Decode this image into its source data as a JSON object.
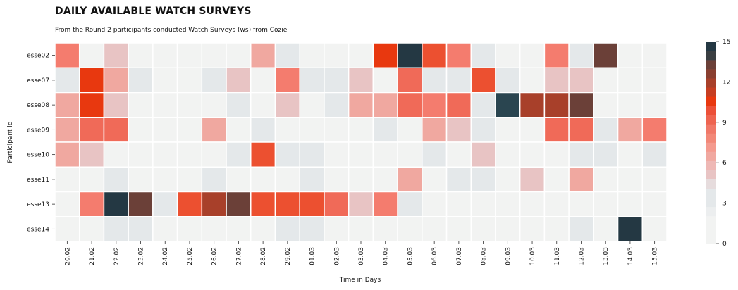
{
  "chart_data": {
    "type": "heatmap",
    "title": "DAILY AVAILABLE WATCH SURVEYS",
    "subtitle": "From the Round 2 participants conducted Watch Surveys (ws) from Cozie",
    "xlabel": "Time in Days",
    "ylabel": "Participant id",
    "x_categories": [
      "20.02",
      "21.02",
      "22.02",
      "23.02",
      "24.02",
      "25.02",
      "26.02",
      "27.02",
      "28.02",
      "29.02",
      "01.03",
      "02.03",
      "03.03",
      "04.03",
      "05.03",
      "06.03",
      "07.03",
      "08.03",
      "09.03",
      "10.03",
      "11.03",
      "12.03",
      "13.03",
      "14.03",
      "15.03"
    ],
    "y_categories": [
      "esse02",
      "esse07",
      "esse08",
      "esse09",
      "esse10",
      "esse11",
      "esse13",
      "esse14"
    ],
    "values": [
      [
        7,
        1,
        4,
        1,
        1,
        1,
        1,
        1,
        5,
        2,
        1,
        1,
        1,
        10,
        15,
        9,
        7,
        2,
        1,
        1,
        7,
        2,
        12,
        1,
        1
      ],
      [
        2,
        10,
        6,
        2,
        1,
        1,
        2,
        4,
        1,
        7,
        2,
        2,
        4,
        1,
        8,
        2,
        2,
        9,
        2,
        1,
        4,
        4,
        1,
        1,
        1
      ],
      [
        6,
        10,
        4,
        1,
        1,
        1,
        1,
        2,
        1,
        4,
        1,
        2,
        6,
        6,
        8,
        7,
        8,
        2,
        14,
        11,
        11,
        12,
        1,
        1,
        1
      ],
      [
        6,
        8,
        8,
        1,
        1,
        1,
        6,
        1,
        2,
        1,
        1,
        1,
        1,
        2,
        1,
        6,
        4,
        2,
        1,
        1,
        8,
        8,
        2,
        6,
        7
      ],
      [
        6,
        4,
        1,
        1,
        1,
        1,
        1,
        2,
        9,
        2,
        2,
        1,
        1,
        1,
        1,
        2,
        1,
        4,
        1,
        1,
        1,
        2,
        2,
        1,
        2
      ],
      [
        1,
        1,
        2,
        1,
        1,
        1,
        2,
        1,
        1,
        1,
        2,
        1,
        1,
        1,
        6,
        1,
        2,
        2,
        1,
        4,
        1,
        5,
        1,
        1,
        1
      ],
      [
        1,
        7,
        15,
        12,
        2,
        9,
        11,
        12,
        9,
        9,
        9,
        8,
        4,
        7,
        2,
        1,
        1,
        1,
        1,
        1,
        1,
        1,
        1,
        1,
        1
      ],
      [
        1,
        1,
        2,
        2,
        1,
        1,
        1,
        1,
        1,
        2,
        2,
        1,
        1,
        1,
        1,
        1,
        1,
        1,
        1,
        1,
        1,
        2,
        1,
        15,
        1
      ]
    ],
    "vmin": 0,
    "vmax": 15,
    "colorbar_ticks": [
      "0",
      "3",
      "6",
      "9",
      "12",
      "15"
    ],
    "colors": {
      "low": "#f2f3f2",
      "light_gray": "#e4e8ea",
      "pink": "#e8c4c4",
      "salmon": "#f07060",
      "red": "#e8380f",
      "brown": "#6b4038",
      "navy": "#243843"
    }
  }
}
